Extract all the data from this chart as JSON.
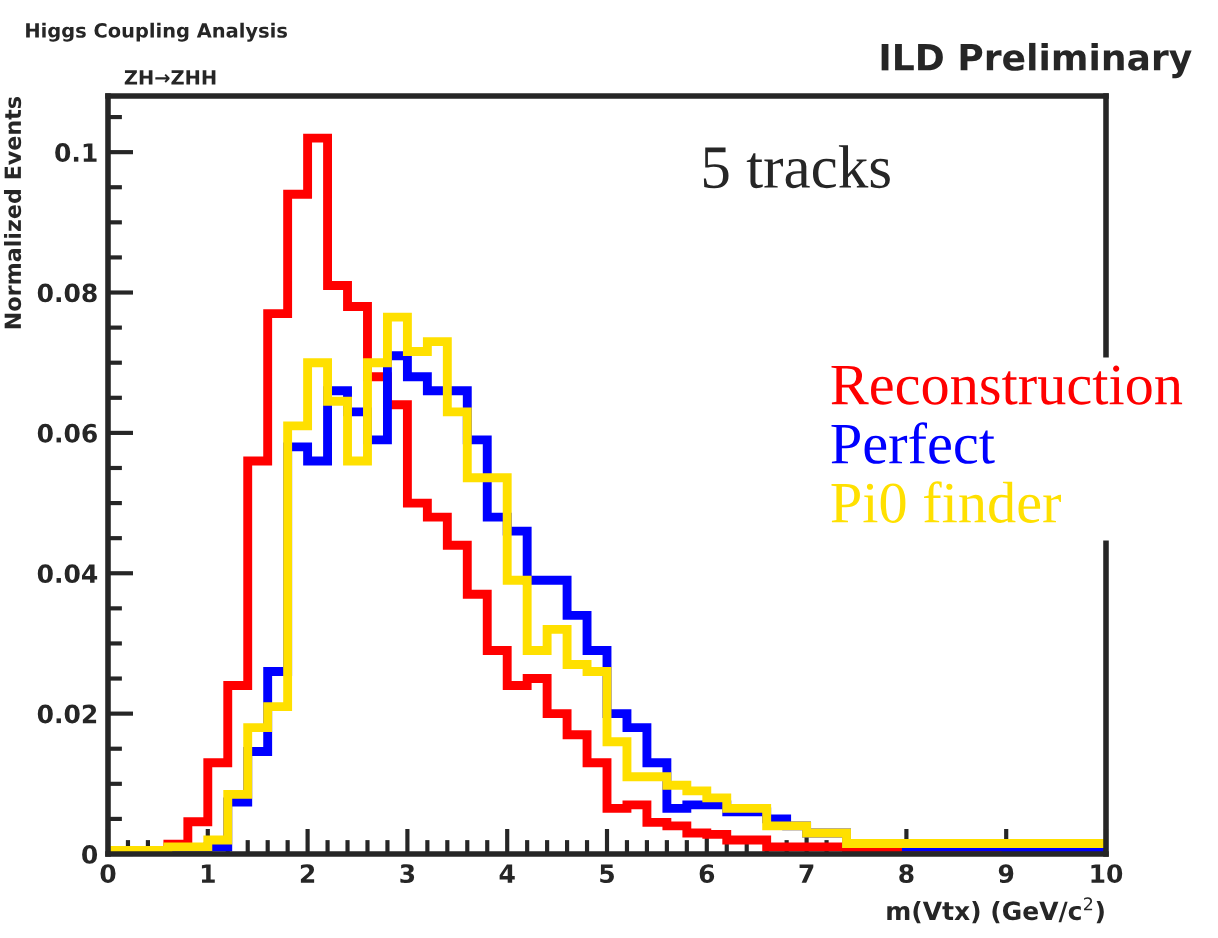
{
  "chart_data": {
    "type": "histogram",
    "title": "ILD Preliminary",
    "xlabel": "m(Vtx) (GeV/c$^{2}$)",
    "ylabel": "Normalized Events",
    "annotations": [
      "Higgs Coupling Analysis",
      "ZH→ZHH",
      "5 tracks"
    ],
    "bins": [
      0,
      0.2,
      0.4,
      0.6,
      0.8,
      1.0,
      1.2,
      1.4,
      1.6,
      1.8,
      2.0,
      2.2,
      2.4,
      2.6,
      2.8,
      3.0,
      3.2,
      3.4,
      3.6,
      3.8,
      4.0,
      4.2,
      4.4,
      4.6,
      4.8,
      5.0,
      5.2,
      5.4,
      5.6,
      5.8,
      6.0,
      6.2,
      6.4,
      6.6,
      6.8,
      7.0,
      7.2,
      7.4,
      7.6,
      7.8,
      8.0,
      8.2,
      8.4,
      8.6,
      8.8,
      9.0,
      9.2,
      9.4,
      9.6,
      9.8,
      10.0
    ],
    "series": [
      {
        "name": "Reconstruction",
        "color": "#ff0000",
        "values": [
          0,
          0,
          0,
          0.0014,
          0.0046,
          0.013,
          0.024,
          0.056,
          0.077,
          0.094,
          0.102,
          0.081,
          0.078,
          0.068,
          0.064,
          0.05,
          0.048,
          0.044,
          0.037,
          0.029,
          0.024,
          0.025,
          0.02,
          0.017,
          0.013,
          0.0065,
          0.007,
          0.0045,
          0.004,
          0.003,
          0.0028,
          0.002,
          0.002,
          0.001,
          0.001,
          0.001,
          0.001,
          0.0003,
          0.0003,
          0.0003,
          0.0003,
          0.0003,
          0,
          0,
          0,
          0,
          0,
          0,
          0,
          0
        ]
      },
      {
        "name": "Perfect",
        "color": "#0000ff",
        "values": [
          0,
          0,
          0,
          0,
          0.0003,
          0.001,
          0.0074,
          0.0146,
          0.026,
          0.058,
          0.056,
          0.066,
          0.063,
          0.059,
          0.071,
          0.068,
          0.066,
          0.066,
          0.059,
          0.048,
          0.046,
          0.039,
          0.039,
          0.034,
          0.029,
          0.02,
          0.018,
          0.013,
          0.0065,
          0.007,
          0.007,
          0.006,
          0.006,
          0.005,
          0.004,
          0.003,
          0.003,
          0.0015,
          0.0015,
          0.0015,
          0.001,
          0.001,
          0.001,
          0.001,
          0.001,
          0.0005,
          0.0005,
          0.0005,
          0.0005,
          0.0005
        ]
      },
      {
        "name": "Pi0 finder",
        "color": "#ffe000",
        "values": [
          0.0005,
          0.0005,
          0.0005,
          0.001,
          0.001,
          0.002,
          0.0085,
          0.018,
          0.021,
          0.061,
          0.07,
          0.0645,
          0.056,
          0.07,
          0.0765,
          0.0716,
          0.073,
          0.063,
          0.0536,
          0.0536,
          0.039,
          0.029,
          0.032,
          0.027,
          0.026,
          0.016,
          0.011,
          0.011,
          0.0098,
          0.009,
          0.008,
          0.0065,
          0.0065,
          0.004,
          0.004,
          0.003,
          0.003,
          0.0015,
          0.0015,
          0.0015,
          0.0015,
          0.0015,
          0.0015,
          0.0015,
          0.0015,
          0.0015,
          0.0015,
          0.0015,
          0.0015,
          0.0015
        ]
      }
    ],
    "xlim": [
      0,
      10
    ],
    "ylim": [
      0,
      0.108
    ],
    "xticks": [
      0,
      1,
      2,
      3,
      4,
      5,
      6,
      7,
      8,
      9,
      10
    ],
    "yticks": [
      0,
      0.02,
      0.04,
      0.06,
      0.08,
      {
        "value": 0.1,
        "label": "0.1"
      }
    ],
    "legend": "top right",
    "grid": false
  }
}
